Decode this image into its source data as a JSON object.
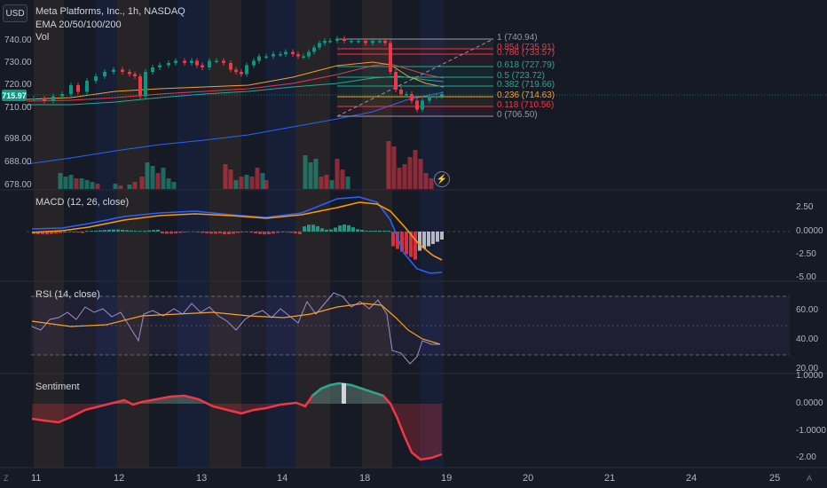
{
  "header": {
    "currency": "USD",
    "symbol_line": "Meta Platforms, Inc., 1h, NASDAQ",
    "ema_label": "EMA 20/50/100/200",
    "vol_label": "Vol",
    "last_price": "715.97"
  },
  "main_axis": {
    "ticks": [
      "740.00",
      "730.00",
      "720.00",
      "710.00",
      "698.00",
      "688.00",
      "678.00"
    ]
  },
  "fib_levels": [
    {
      "label": "1 (740.94)",
      "color": "#9598a1"
    },
    {
      "label": "0.854 (735.91)",
      "color": "#f23645"
    },
    {
      "label": "0.786 (733.57)",
      "color": "#f23645"
    },
    {
      "label": "0.618 (727.79)",
      "color": "#22ab94"
    },
    {
      "label": "0.5 (723.72)",
      "color": "#22ab94"
    },
    {
      "label": "0.382 (719.66)",
      "color": "#22ab94"
    },
    {
      "label": "0.236 (714.63)",
      "color": "#f7a21b"
    },
    {
      "label": "0.118 (710.56)",
      "color": "#f23645"
    },
    {
      "label": "0 (706.50)",
      "color": "#9598a1"
    }
  ],
  "macd": {
    "label": "MACD (12, 26, close)",
    "ticks": [
      "2.50",
      "0.0000",
      "-2.50",
      "-5.00"
    ]
  },
  "rsi": {
    "label": "RSI (14, close)",
    "ticks": [
      "60.00",
      "40.00",
      "20.00"
    ]
  },
  "sentiment": {
    "label": "Sentiment",
    "ticks": [
      "1.0000",
      "0.0000",
      "-1.0000",
      "-2.00"
    ]
  },
  "time_axis": {
    "labels": [
      "11",
      "12",
      "13",
      "14",
      "18",
      "19",
      "20",
      "21",
      "24",
      "25"
    ]
  },
  "corners": {
    "left": "Z",
    "right": "A"
  },
  "colors": {
    "up": "#089981",
    "down": "#f23645",
    "ema20": "#f7a21b",
    "ema50": "#f23645",
    "ema100": "#22ab94",
    "ema200": "#2962ff",
    "macd": "#2962ff",
    "signal": "#ff9800",
    "rsi": "#7e57c2",
    "rsi_ma": "#f7a21b"
  }
}
